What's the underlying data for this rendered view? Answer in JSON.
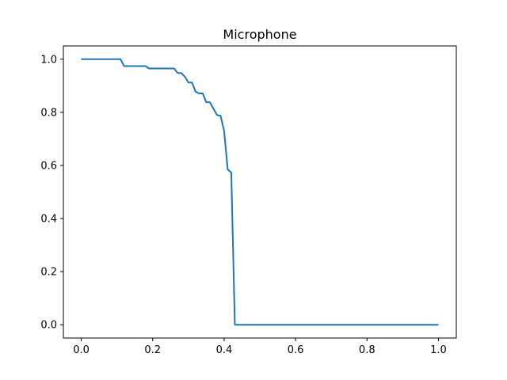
{
  "chart_data": {
    "type": "line",
    "title": "Microphone",
    "xlabel": "",
    "ylabel": "",
    "xlim": [
      -0.05,
      1.05
    ],
    "ylim": [
      -0.05,
      1.05
    ],
    "x_ticks": [
      0.0,
      0.2,
      0.4,
      0.6,
      0.8,
      1.0
    ],
    "x_tick_labels": [
      "0.0",
      "0.2",
      "0.4",
      "0.6",
      "0.8",
      "1.0"
    ],
    "y_ticks": [
      0.0,
      0.2,
      0.4,
      0.6,
      0.8,
      1.0
    ],
    "y_tick_labels": [
      "0.0",
      "0.2",
      "0.4",
      "0.6",
      "0.8",
      "1.0"
    ],
    "grid": false,
    "series": [
      {
        "color": "#1f77b4",
        "x": [
          0.0,
          0.11,
          0.12,
          0.18,
          0.19,
          0.26,
          0.27,
          0.28,
          0.29,
          0.3,
          0.31,
          0.32,
          0.33,
          0.34,
          0.35,
          0.36,
          0.38,
          0.39,
          0.4,
          0.41,
          0.42,
          0.43,
          1.0
        ],
        "y": [
          1.0,
          1.0,
          0.974,
          0.974,
          0.965,
          0.965,
          0.948,
          0.948,
          0.934,
          0.912,
          0.912,
          0.878,
          0.871,
          0.871,
          0.838,
          0.838,
          0.79,
          0.787,
          0.73,
          0.585,
          0.573,
          0.0,
          0.0
        ]
      }
    ]
  }
}
